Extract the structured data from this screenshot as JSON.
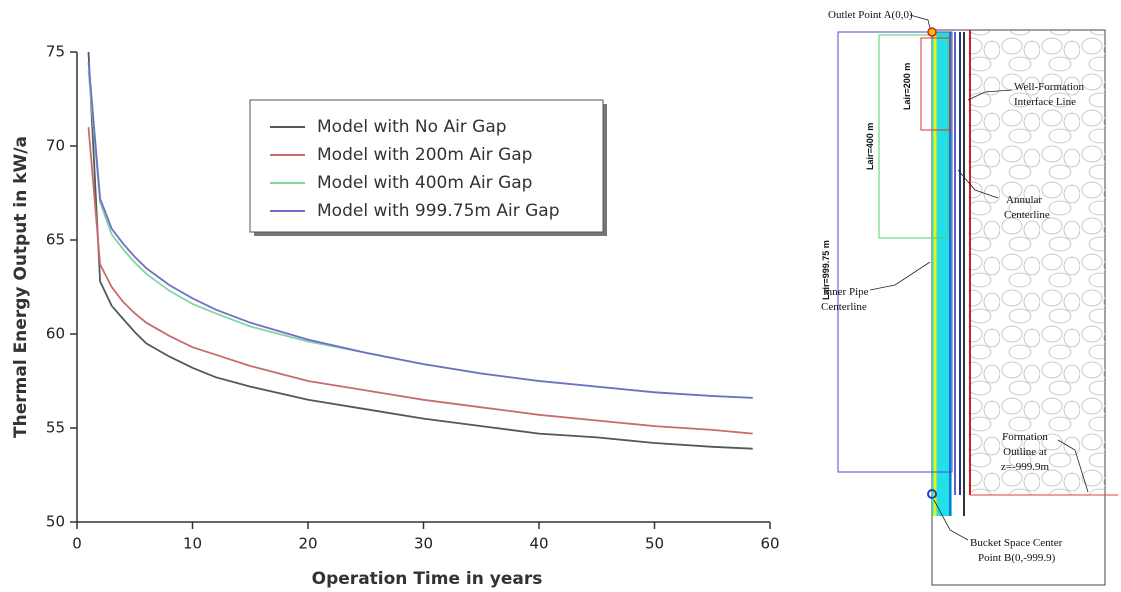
{
  "chart_data": {
    "type": "line",
    "xlabel": "Operation Time in years",
    "ylabel": "Thermal Energy Output in kW/a",
    "x": [
      1,
      2,
      3,
      4,
      5,
      6,
      8,
      10,
      12,
      15,
      20,
      25,
      30,
      35,
      40,
      45,
      50,
      55,
      58.5
    ],
    "series": [
      {
        "name": "Model with No Air Gap",
        "color": "#505860",
        "values": [
          75,
          62.8,
          61.5,
          60.8,
          60.1,
          59.5,
          58.8,
          58.2,
          57.7,
          57.2,
          56.5,
          56.0,
          55.5,
          55.1,
          54.7,
          54.5,
          54.2,
          54.0,
          53.9
        ]
      },
      {
        "name": "Model with 200m Air Gap",
        "color": "#c86c6c",
        "values": [
          71.0,
          63.7,
          62.5,
          61.7,
          61.1,
          60.6,
          59.9,
          59.3,
          58.9,
          58.3,
          57.5,
          57.0,
          56.5,
          56.1,
          55.7,
          55.4,
          55.1,
          54.9,
          54.7
        ]
      },
      {
        "name": "Model with 400m Air Gap",
        "color": "#7fd6a0",
        "values": [
          74.0,
          67.0,
          65.3,
          64.5,
          63.8,
          63.2,
          62.3,
          61.6,
          61.1,
          60.4,
          59.6,
          59.0,
          58.4,
          57.9,
          57.5,
          57.2,
          56.9,
          56.7,
          56.6
        ]
      },
      {
        "name": "Model with 999.75m Air Gap",
        "color": "#6f6fc4",
        "values": [
          74.5,
          67.2,
          65.6,
          64.8,
          64.1,
          63.5,
          62.6,
          61.9,
          61.3,
          60.6,
          59.7,
          59.0,
          58.4,
          57.9,
          57.5,
          57.2,
          56.9,
          56.7,
          56.6
        ]
      }
    ],
    "xlim": [
      0,
      60
    ],
    "xticks": [
      0,
      10,
      20,
      30,
      40,
      50,
      60
    ],
    "ylim": [
      50,
      75
    ],
    "yticks": [
      50,
      55,
      60,
      65,
      70,
      75
    ]
  },
  "diagram": {
    "outlet": "Outlet Point A(0,0)",
    "interface": [
      "Well-Formation",
      "Interface Line"
    ],
    "lair_200": "Lair=200 m",
    "lair_400": "Lair=400 m",
    "lair_999": "Lair=999.75 m",
    "annular": [
      "Annular",
      "Centerline"
    ],
    "inner_pipe": [
      "Inner Pipe",
      "Centerline"
    ],
    "formation": [
      "Formation",
      "Outline at",
      "z=-999.9m"
    ],
    "bucket": [
      "Bucket Space Center",
      "Point B(0,-999.9)"
    ]
  }
}
